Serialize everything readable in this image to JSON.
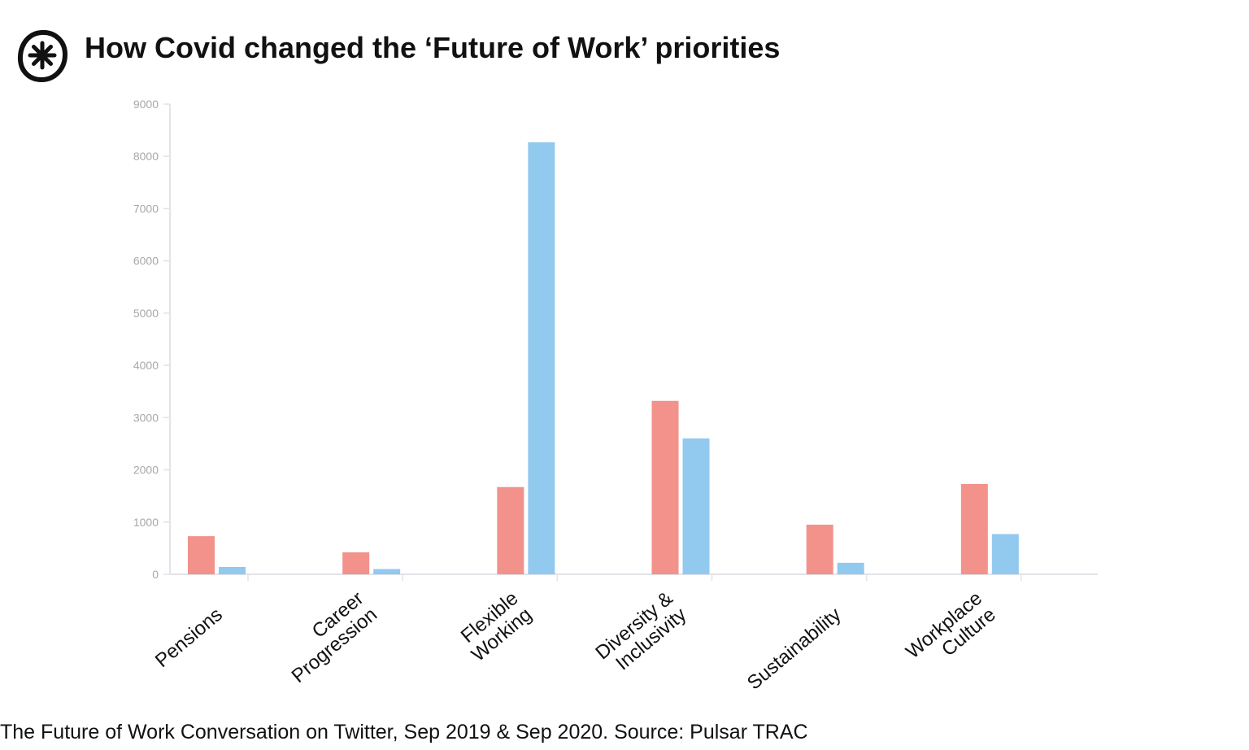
{
  "header": {
    "title": "How Covid changed the ‘Future of Work’ priorities"
  },
  "logo": {
    "icon": "asterisk-circle-logo",
    "color": "#111111"
  },
  "footer": {
    "caption": "The Future of Work Conversation on Twitter, Sep 2019 & Sep 2020.  Source: Pulsar TRAC"
  },
  "chart_data": {
    "type": "bar",
    "title": "",
    "xlabel": "",
    "ylabel": "",
    "ylim": [
      0,
      9000
    ],
    "yticks": [
      0,
      1000,
      2000,
      3000,
      4000,
      5000,
      6000,
      7000,
      8000,
      9000
    ],
    "grid": false,
    "legend": "none",
    "categories": [
      [
        "Pensions"
      ],
      [
        "Career",
        "Progression"
      ],
      [
        "Flexible",
        "Working"
      ],
      [
        "Diversity &",
        "Inclusivity"
      ],
      [
        "Sustainability"
      ],
      [
        "Workplace",
        "Culture"
      ]
    ],
    "series": [
      {
        "color": "#f2928a",
        "values": [
          730,
          420,
          1670,
          3320,
          950,
          1730
        ]
      },
      {
        "color": "#92c9ef",
        "values": [
          140,
          100,
          8270,
          2600,
          220,
          770
        ]
      }
    ]
  }
}
